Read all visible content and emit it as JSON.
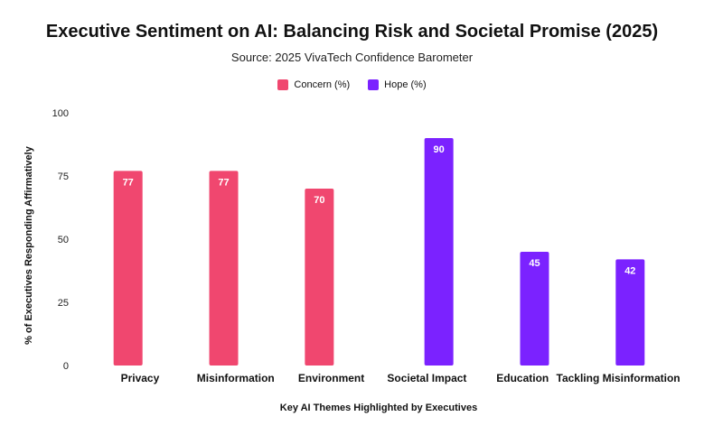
{
  "chart_data": {
    "type": "bar",
    "title": "Executive Sentiment on AI: Balancing Risk and Societal Promise (2025)",
    "subtitle": "Source: 2025 VivaTech Confidence Barometer",
    "xlabel": "Key AI Themes Highlighted by Executives",
    "ylabel": "% of Executives Responding Affirmatively",
    "ylim": [
      0,
      100
    ],
    "yticks": [
      0,
      25,
      50,
      75,
      100
    ],
    "grid": false,
    "legend_position": "top-center",
    "categories": [
      "Privacy",
      "Misinformation",
      "Environment",
      "Societal Impact",
      "Education",
      "Tackling Misinformation"
    ],
    "series": [
      {
        "name": "Concern (%)",
        "color": "#f0476f",
        "values": [
          77,
          77,
          70,
          null,
          null,
          null
        ]
      },
      {
        "name": "Hope (%)",
        "color": "#7b22ff",
        "values": [
          null,
          null,
          null,
          90,
          45,
          42
        ]
      }
    ]
  }
}
